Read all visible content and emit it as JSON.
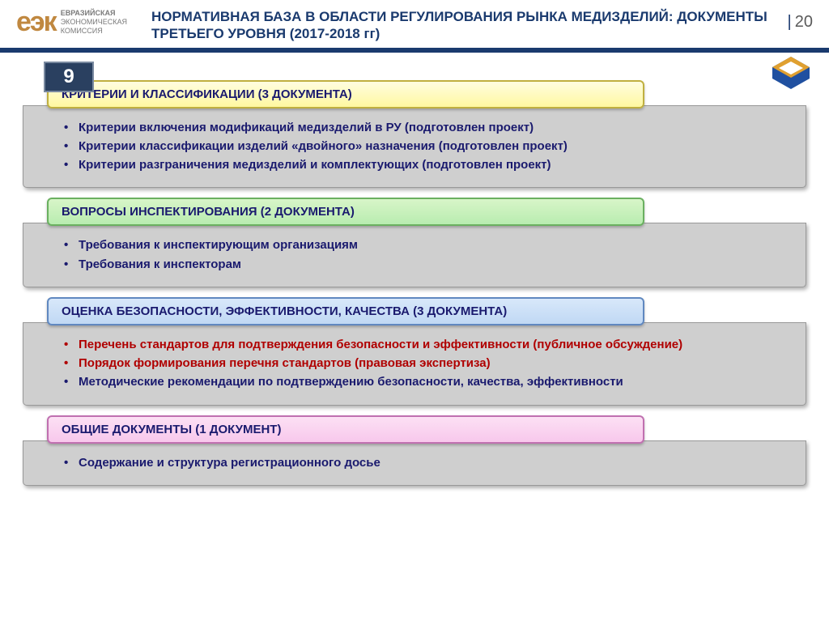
{
  "header": {
    "logo_mark": "еэк",
    "logo_text_1": "ЕВРАЗИЙСКАЯ",
    "logo_text_2": "экономическая",
    "logo_text_3": "комиссия",
    "title": "НОРМАТИВНАЯ БАЗА В ОБЛАСТИ РЕГУЛИРОВАНИЯ РЫНКА МЕДИЗДЕЛИЙ: ДОКУМЕНТЫ ТРЕТЬЕГО УРОВНЯ (2017-2018 гг)",
    "page_number": "20"
  },
  "badge": "9",
  "sections": [
    {
      "header": "КРИТЕРИИ И КЛАССИФИКАЦИИ (3 ДОКУМЕНТА)",
      "header_class": "hdr-yellow",
      "items": [
        {
          "text": "Критерии включения  модификаций медизделий в РУ (подготовлен проект)",
          "color": "blue"
        },
        {
          "text": "Критерии классификации изделий «двойного» назначения (подготовлен проект)",
          "color": "blue"
        },
        {
          "text": "Критерии разграничения медизделий и комплектующих (подготовлен проект)",
          "color": "blue"
        }
      ]
    },
    {
      "header": "ВОПРОСЫ ИНСПЕКТИРОВАНИЯ (2 ДОКУМЕНТА)",
      "header_class": "hdr-green",
      "items": [
        {
          "text": "Требования к инспектирующим организациям",
          "color": "blue"
        },
        {
          "text": "Требования к инспекторам",
          "color": "blue"
        }
      ]
    },
    {
      "header": "ОЦЕНКА БЕЗОПАСНОСТИ, ЭФФЕКТИВНОСТИ, КАЧЕСТВА (3 ДОКУМЕНТА)",
      "header_class": "hdr-blue",
      "items": [
        {
          "text": "Перечень стандартов для подтверждения безопасности и эффективности (публичное обсуждение)",
          "color": "red"
        },
        {
          "text": "Порядок формирования перечня стандартов (правовая экспертиза)",
          "color": "red"
        },
        {
          "text": "Методические рекомендации по подтверждению безопасности, качества, эффективности",
          "color": "blue"
        }
      ]
    },
    {
      "header": "ОБЩИЕ ДОКУМЕНТЫ (1 ДОКУМЕНТ)",
      "header_class": "hdr-pink",
      "items": [
        {
          "text": "Содержание и структура регистрационного досье",
          "color": "blue"
        }
      ]
    }
  ],
  "colors": {
    "brand_blue": "#1a3a6e",
    "logo_gold": "#c08840",
    "body_gray": "#cfcfcf",
    "text_blue": "#1a1a6e",
    "text_red": "#b00000"
  }
}
